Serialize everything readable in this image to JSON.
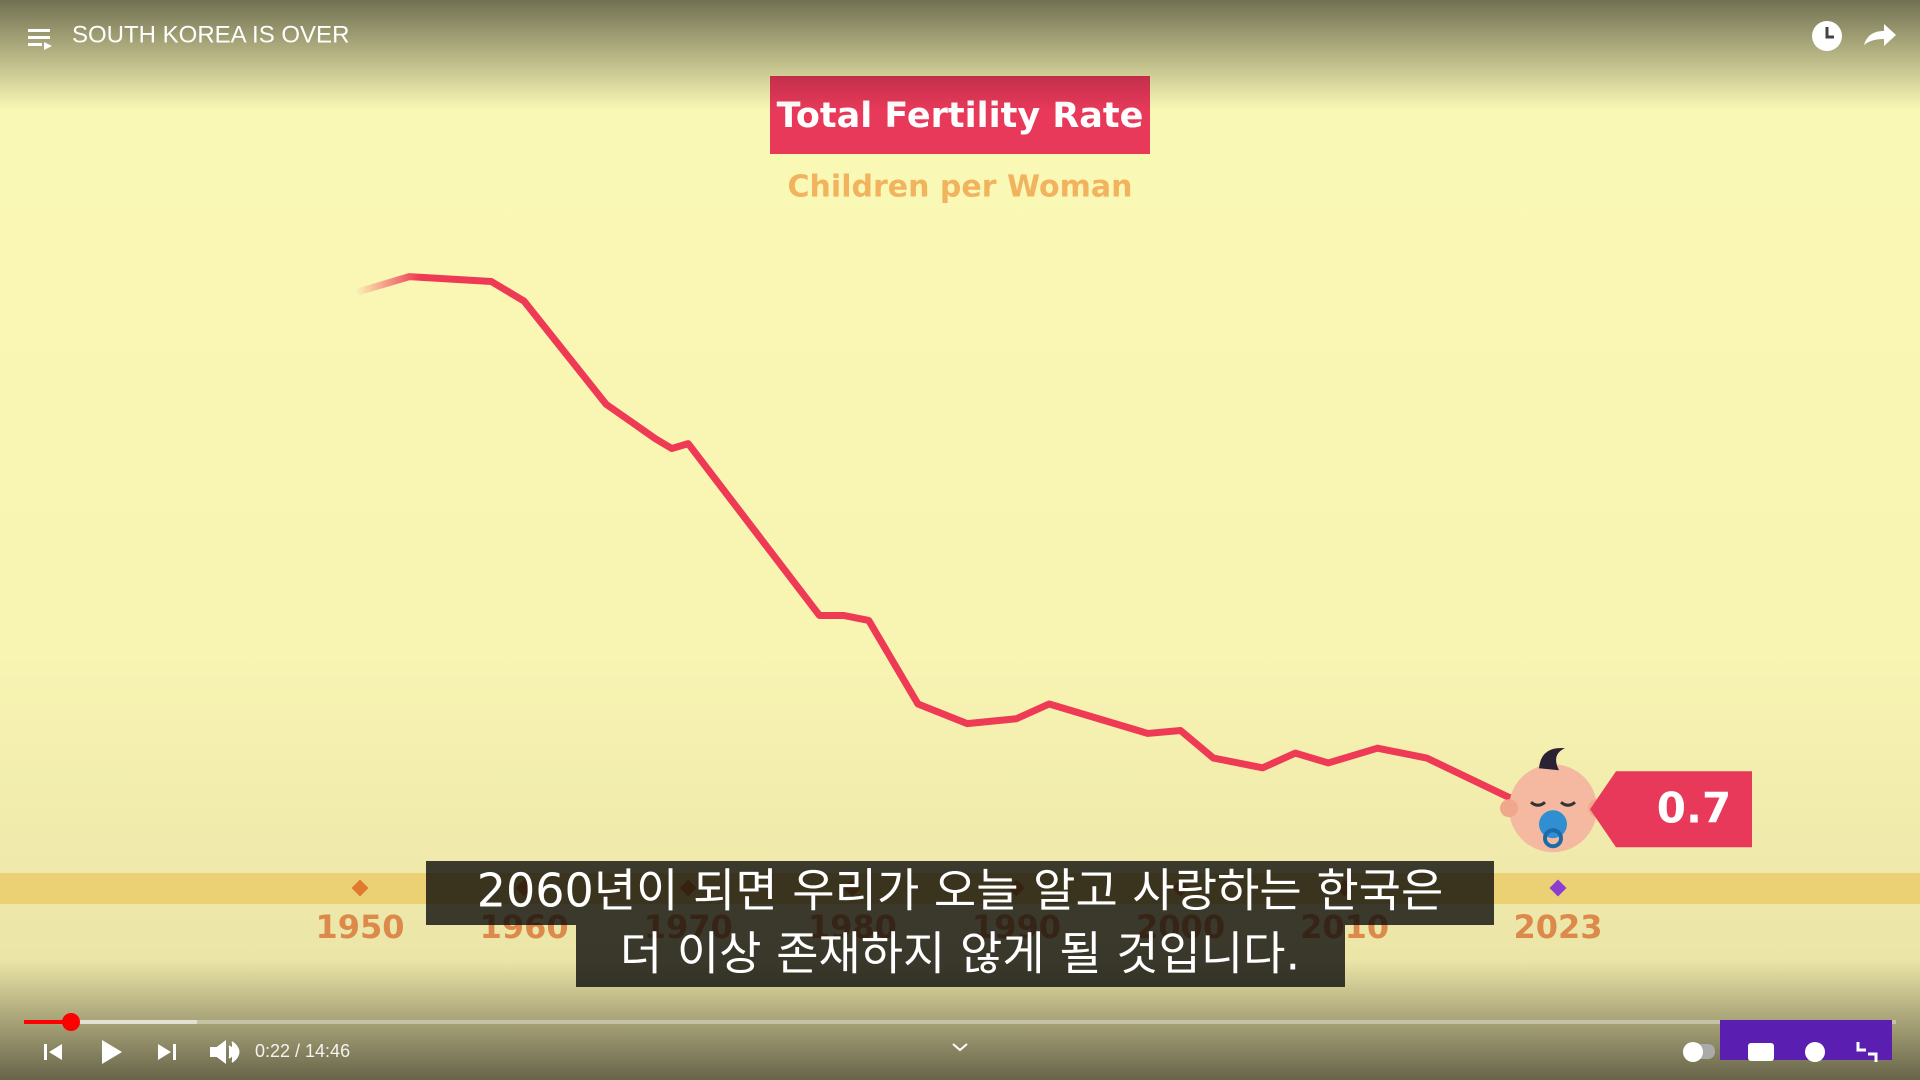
{
  "player": {
    "title": "SOUTH KOREA IS OVER",
    "time": "0:22 / 14:46",
    "subtitles": [
      "2060년이 되면 우리가 오늘 알고 사랑하는 한국은",
      "더 이상 존재하지 않게 될 것입니다."
    ]
  },
  "chart_data": {
    "type": "line",
    "title": "Total Fertility Rate",
    "subtitle": "Children per Woman",
    "x": [
      1950,
      1953,
      1958,
      1960,
      1965,
      1968,
      1969,
      1970,
      1978,
      1979.5,
      1981,
      1984,
      1987,
      1990,
      1992,
      1998,
      2000,
      2002,
      2005,
      2007,
      2009,
      2012,
      2015,
      2020,
      2023
    ],
    "series": [
      {
        "name": "Total Fertility Rate",
        "color": "#ee3a55",
        "values": [
          5.9,
          6.05,
          6.0,
          5.8,
          4.75,
          4.4,
          4.3,
          4.35,
          2.6,
          2.6,
          2.55,
          1.7,
          1.5,
          1.55,
          1.7,
          1.4,
          1.43,
          1.15,
          1.05,
          1.2,
          1.1,
          1.25,
          1.15,
          0.75,
          0.7
        ]
      }
    ],
    "xlim": [
      1950,
      2023
    ],
    "xticks": [
      1950,
      1960,
      1970,
      1980,
      1990,
      2000,
      2010,
      2023
    ],
    "ylim": [
      0,
      8
    ]
  }
}
